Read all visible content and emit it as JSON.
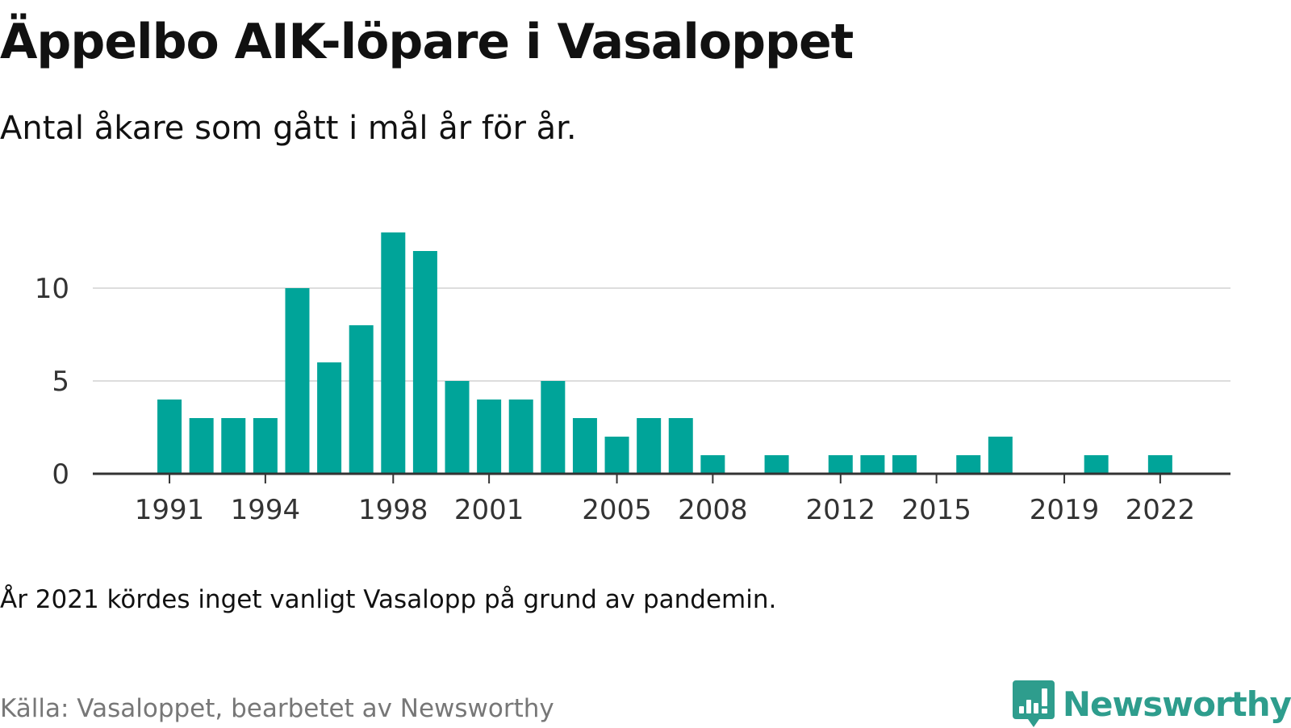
{
  "title": "Äppelbo AIK-löpare i Vasaloppet",
  "subtitle": "Antal åkare som gått i mål år för år.",
  "note": "År 2021 kördes inget vanligt Vasalopp på grund av pandemin.",
  "source": "Källa: Vasaloppet, bearbetet av Newsworthy",
  "brand": {
    "name": "Newsworthy",
    "icon": "newsworthy-logo-icon",
    "color": "#2e9d8d"
  },
  "chart_data": {
    "type": "bar",
    "x": [
      1991,
      1992,
      1993,
      1994,
      1995,
      1996,
      1997,
      1998,
      1999,
      2000,
      2001,
      2002,
      2003,
      2004,
      2005,
      2006,
      2007,
      2008,
      2009,
      2010,
      2011,
      2012,
      2013,
      2014,
      2015,
      2016,
      2017,
      2018,
      2019,
      2020,
      2021,
      2022
    ],
    "values": [
      4,
      3,
      3,
      3,
      10,
      6,
      8,
      13,
      12,
      5,
      4,
      4,
      5,
      3,
      2,
      3,
      3,
      1,
      0,
      1,
      0,
      1,
      1,
      1,
      0,
      1,
      2,
      0,
      0,
      1,
      0,
      1
    ],
    "xticks": [
      "1991",
      "1994",
      "1998",
      "2001",
      "2005",
      "2008",
      "2012",
      "2015",
      "2019",
      "2022"
    ],
    "yticks": [
      "0",
      "5",
      "10"
    ],
    "ylim": [
      0,
      13
    ],
    "xlim": [
      1988.6,
      2024.2
    ],
    "xlabel": "",
    "ylabel": "",
    "grid": true,
    "bar_color": "#00a499",
    "grid_color": "#dddddd",
    "axis_color": "#333333"
  }
}
